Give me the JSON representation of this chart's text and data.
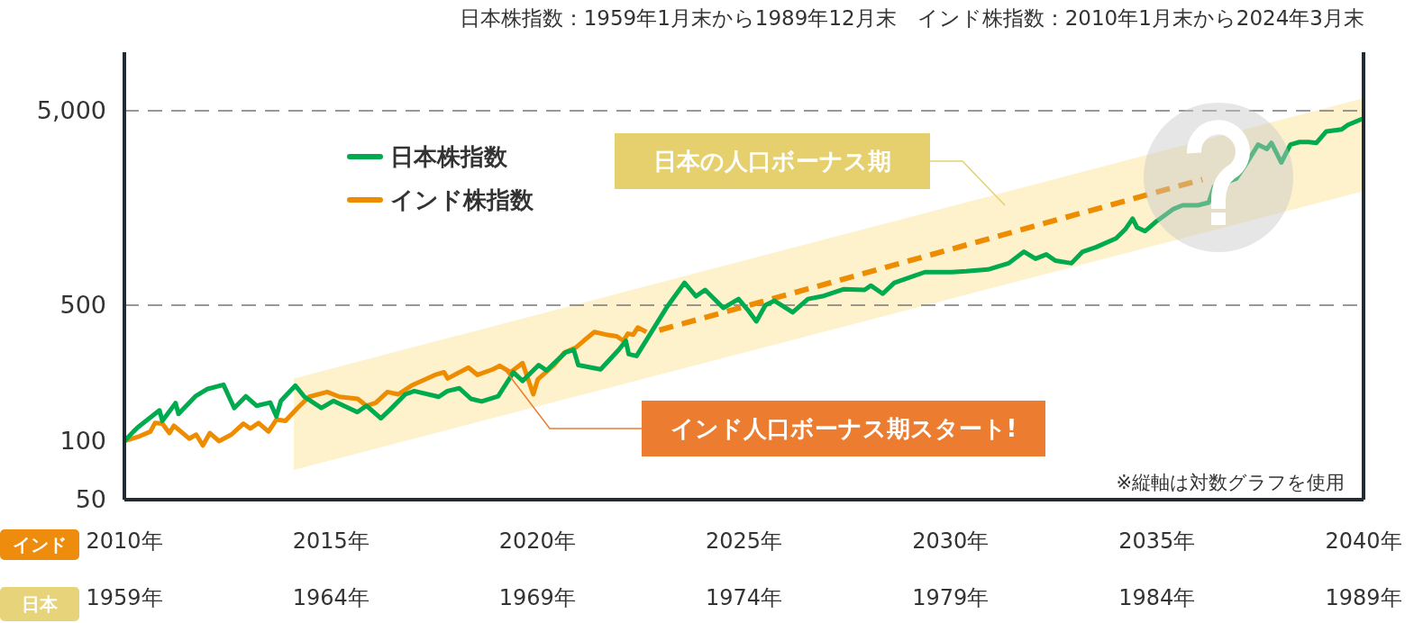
{
  "chart_data": {
    "type": "line",
    "title": "日本株指数：1959年1月末から1989年12月末　インド株指数：2010年1月末から2024年3月末",
    "annotations": [
      "日本の人口ボーナス期",
      {
        "text": "インド人口ボーナス期スタート!",
        "x": 2019.2,
        "y": 234
      },
      "※縦軸は対数グラフを使用"
    ],
    "xlabel": "インド",
    "x2label": "日本",
    "xlim": [
      2010,
      2040
    ],
    "xticks": [
      {
        "value": 2010,
        "label": "2010年"
      },
      {
        "value": 2015,
        "label": "2015年"
      },
      {
        "value": 2020,
        "label": "2020年"
      },
      {
        "value": 2025,
        "label": "2025年"
      },
      {
        "value": 2030,
        "label": "2030年"
      },
      {
        "value": 2035,
        "label": "2035年"
      },
      {
        "value": 2040,
        "label": "2040年"
      }
    ],
    "x2lim": [
      1959,
      1989
    ],
    "x2ticks": [
      {
        "value": 1959,
        "label": "1959年"
      },
      {
        "value": 1964,
        "label": "1964年"
      },
      {
        "value": 1969,
        "label": "1969年"
      },
      {
        "value": 1974,
        "label": "1974年"
      },
      {
        "value": 1979,
        "label": "1979年"
      },
      {
        "value": 1984,
        "label": "1984年"
      },
      {
        "value": 1989,
        "label": "1989年"
      }
    ],
    "ylim": [
      50,
      10000
    ],
    "yticks": [
      50,
      100,
      500,
      {
        "value": 5000,
        "label": "5,000"
      }
    ],
    "log": true,
    "ref_lines": [
      {
        "axis": "y",
        "value": 500,
        "color": "#777777",
        "line_style": "dashed"
      },
      {
        "axis": "y",
        "value": 5000,
        "color": "#777777",
        "line_style": "dashed"
      }
    ],
    "legend": "top left",
    "marker": "none",
    "line_style": "solid",
    "series": [
      {
        "type": "area",
        "color": "#fdf2cc",
        "x": [
          2014.1,
          2040
        ],
        "values": [
          null,
          null
        ],
        "lower": [
          71,
          1930
        ],
        "upper": [
          210,
          5800
        ]
      },
      {
        "name": "インド株指数",
        "color": "#ee8c00",
        "x": [
          2010.0,
          2010.37,
          2010.63,
          2010.74,
          2010.92,
          2011.09,
          2011.2,
          2011.57,
          2011.74,
          2011.9,
          2012.07,
          2012.29,
          2012.59,
          2012.88,
          2013.05,
          2013.25,
          2013.49,
          2013.68,
          2013.9,
          2014.19,
          2014.47,
          2014.91,
          2015.21,
          2015.65,
          2015.86,
          2016.08,
          2016.37,
          2016.63,
          2016.95,
          2017.52,
          2017.74,
          2017.83,
          2018.33,
          2018.55,
          2018.92,
          2019.09,
          2019.35,
          2019.64,
          2019.9,
          2020.01,
          2020.4,
          2020.66,
          2020.94,
          2021.12,
          2021.38,
          2021.66,
          2021.92,
          2022.08,
          2022.19,
          2022.32,
          2022.43,
          2022.64
        ],
        "values": [
          100,
          106,
          112,
          124,
          123,
          110,
          120,
          103,
          108,
          95,
          110,
          100,
          108,
          123,
          116,
          124,
          112,
          129,
          127,
          148,
          169,
          179,
          169,
          165,
          152,
          157,
          179,
          174,
          193,
          219,
          226,
          210,
          239,
          219,
          234,
          244,
          226,
          252,
          174,
          208,
          246,
          286,
          304,
          328,
          364,
          353,
          346,
          328,
          357,
          353,
          384,
          364
        ]
      },
      {
        "color": "#ee8c00",
        "line_style": "dashed",
        "x": [
          2022.95,
          2036.1
        ],
        "values": [
          372,
          2216
        ]
      },
      {
        "name": "日本株指数",
        "color": "#00aa4f",
        "axis": "x2",
        "x": [
          1959,
          1959.22,
          1959.33,
          1959.85,
          1959.92,
          1960.24,
          1960.31,
          1960.72,
          1961,
          1961.4,
          1961.66,
          1961.94,
          1962.2,
          1962.53,
          1962.68,
          1962.79,
          1963.14,
          1963.36,
          1963.77,
          1964.06,
          1964.64,
          1964.86,
          1965.21,
          1965.43,
          1965.8,
          1966.02,
          1966.61,
          1966.82,
          1967.11,
          1967.39,
          1967.65,
          1968.05,
          1968.42,
          1968.64,
          1969.03,
          1969.22,
          1969.68,
          1969.88,
          1969.99,
          1970.53,
          1970.97,
          1971.14,
          1971.21,
          1971.4,
          1972.12,
          1972.56,
          1972.84,
          1973.06,
          1973.5,
          1973.87,
          1974.09,
          1974.3,
          1974.52,
          1974.74,
          1975.18,
          1975.55,
          1975.9,
          1976.42,
          1976.92,
          1977.07,
          1977.36,
          1977.64,
          1978.38,
          1979.03,
          1979.38,
          1979.91,
          1980.41,
          1980.78,
          1981.06,
          1981.32,
          1981.54,
          1981.93,
          1982.2,
          1982.52,
          1983.01,
          1983.23,
          1983.41,
          1983.52,
          1983.71,
          1983.96,
          1984.4,
          1984.62,
          1984.99,
          1985.25,
          1985.38,
          1985.92,
          1986.14,
          1986.45,
          1986.66,
          1986.77,
          1987.01,
          1987.23,
          1987.45,
          1987.67,
          1987.86,
          1988.1,
          1988.47,
          1988.62,
          1988.97
        ],
        "values": [
          100,
          112,
          118,
          144,
          127,
          157,
          138,
          170,
          185,
          195,
          148,
          170,
          152,
          158,
          134,
          161,
          193,
          169,
          148,
          161,
          141,
          152,
          131,
          145,
          174,
          181,
          169,
          181,
          187,
          165,
          160,
          170,
          226,
          204,
          246,
          231,
          286,
          295,
          246,
          234,
          295,
          328,
          280,
          274,
          484,
          652,
          556,
          599,
          484,
          538,
          474,
          413,
          500,
          527,
          460,
          538,
          556,
          605,
          599,
          631,
          573,
          652,
          740,
          740,
          747,
          763,
          822,
          942,
          867,
          912,
          848,
          822,
          942,
          993,
          1104,
          1227,
          1393,
          1253,
          1202,
          1336,
          1563,
          1632,
          1632,
          1686,
          2037,
          2239,
          2626,
          3346,
          3176,
          3419,
          2709,
          3346,
          3452,
          3452,
          3419,
          3918,
          4006,
          4226,
          4546
        ]
      }
    ]
  }
}
